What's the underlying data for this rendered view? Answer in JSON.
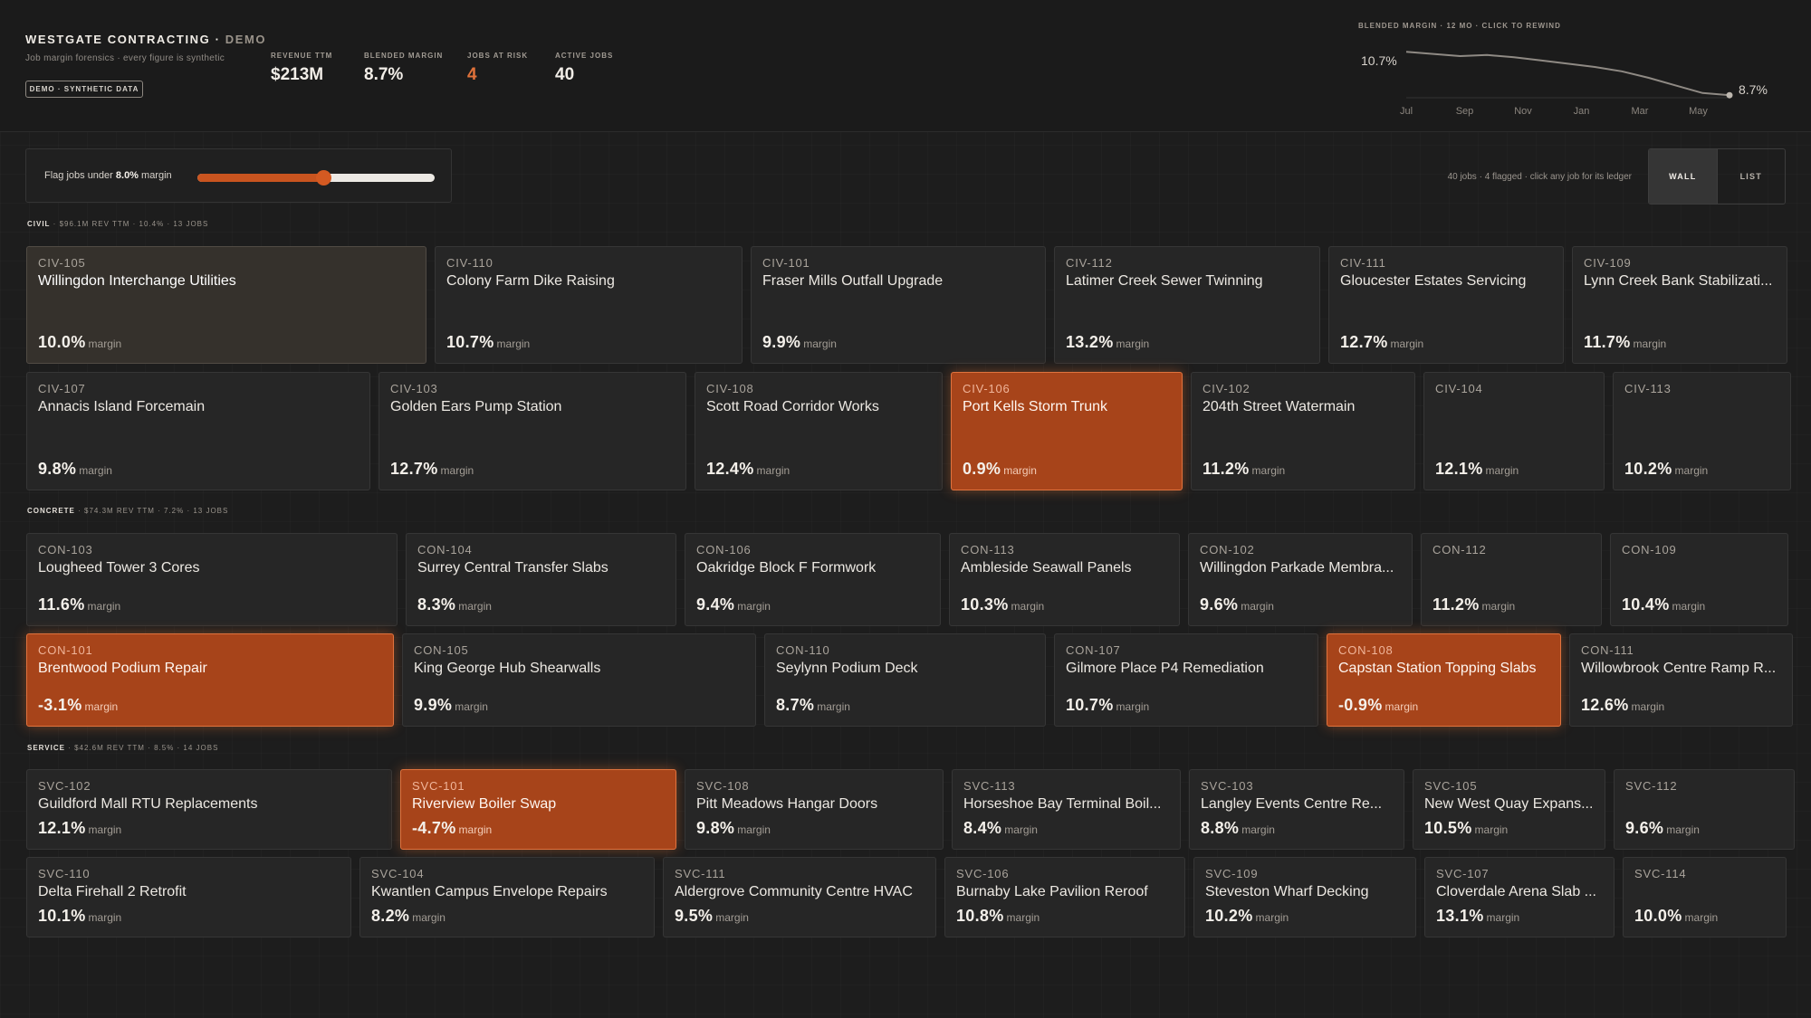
{
  "header": {
    "title": "WESTGATE CONTRACTING",
    "title_sep": " · ",
    "title_suffix": "DEMO",
    "subtitle": "Job margin forensics · every figure is synthetic",
    "badge": "DEMO · SYNTHETIC DATA",
    "kpis": [
      {
        "label": "REVENUE TTM",
        "value": "$213M",
        "alert": false
      },
      {
        "label": "BLENDED MARGIN",
        "value": "8.7%",
        "alert": false
      },
      {
        "label": "JOBS AT RISK",
        "value": "4",
        "alert": true
      },
      {
        "label": "ACTIVE JOBS",
        "value": "40",
        "alert": false
      }
    ]
  },
  "sparkline": {
    "title": "BLENDED MARGIN · 12 MO · CLICK TO REWIND",
    "start_label": "10.7%",
    "end_label": "8.7%",
    "accent": "#e0723a",
    "months": [
      "Jul",
      "Sep",
      "Nov",
      "Jan",
      "Mar",
      "May"
    ],
    "points": [
      10.7,
      10.6,
      10.5,
      10.55,
      10.45,
      10.3,
      10.15,
      10.0,
      9.8,
      9.5,
      9.15,
      8.8,
      8.7
    ]
  },
  "controls": {
    "flag_label_pre": "Flag jobs under ",
    "flag_threshold": "8.0%",
    "flag_label_post": " margin",
    "slider_fraction": 0.53,
    "summary": "40 jobs · 4 flagged · click any job for its ledger",
    "view_wall": "WALL",
    "view_list": "LIST"
  },
  "colors": {
    "background": "#1d1d1d",
    "flagged": "#a7441a",
    "accent": "#e0723a"
  },
  "margin_unit": "margin",
  "sections": [
    {
      "id": "civil",
      "name": "CIVIL",
      "meta": " · $96.1M REV TTM · 10.4% · 13 JOBS",
      "rows": [
        [
          {
            "code": "CIV-105",
            "name": "Willingdon Interchange Utilities",
            "margin": "10.0%",
            "state": "selected"
          },
          {
            "code": "CIV-110",
            "name": "Colony Farm Dike Raising",
            "margin": "10.7%",
            "state": ""
          },
          {
            "code": "CIV-101",
            "name": "Fraser Mills Outfall Upgrade",
            "margin": "9.9%",
            "state": ""
          },
          {
            "code": "CIV-112",
            "name": "Latimer Creek Sewer Twinning",
            "margin": "13.2%",
            "state": ""
          },
          {
            "code": "CIV-111",
            "name": "Gloucester Estates Servicing",
            "margin": "12.7%",
            "state": ""
          },
          {
            "code": "CIV-109",
            "name": "Lynn Creek Bank Stabilizati...",
            "margin": "11.7%",
            "state": ""
          }
        ],
        [
          {
            "code": "CIV-107",
            "name": "Annacis Island Forcemain",
            "margin": "9.8%",
            "state": ""
          },
          {
            "code": "CIV-103",
            "name": "Golden Ears Pump Station",
            "margin": "12.7%",
            "state": ""
          },
          {
            "code": "CIV-108",
            "name": "Scott Road Corridor Works",
            "margin": "12.4%",
            "state": ""
          },
          {
            "code": "CIV-106",
            "name": "Port Kells Storm Trunk",
            "margin": "0.9%",
            "state": "flagged"
          },
          {
            "code": "CIV-102",
            "name": "204th Street Watermain",
            "margin": "11.2%",
            "state": ""
          },
          {
            "code": "CIV-104",
            "name": "",
            "margin": "12.1%",
            "state": ""
          },
          {
            "code": "CIV-113",
            "name": "",
            "margin": "10.2%",
            "state": ""
          }
        ]
      ]
    },
    {
      "id": "concrete",
      "name": "CONCRETE",
      "meta": " · $74.3M REV TTM · 7.2% · 13 JOBS",
      "rows": [
        [
          {
            "code": "CON-103",
            "name": "Lougheed Tower 3 Cores",
            "margin": "11.6%",
            "state": ""
          },
          {
            "code": "CON-104",
            "name": "Surrey Central Transfer Slabs",
            "margin": "8.3%",
            "state": ""
          },
          {
            "code": "CON-106",
            "name": "Oakridge Block F Formwork",
            "margin": "9.4%",
            "state": ""
          },
          {
            "code": "CON-113",
            "name": "Ambleside Seawall Panels",
            "margin": "10.3%",
            "state": ""
          },
          {
            "code": "CON-102",
            "name": "Willingdon Parkade Membra...",
            "margin": "9.6%",
            "state": ""
          },
          {
            "code": "CON-112",
            "name": "",
            "margin": "11.2%",
            "state": ""
          },
          {
            "code": "CON-109",
            "name": "",
            "margin": "10.4%",
            "state": ""
          }
        ],
        [
          {
            "code": "CON-101",
            "name": "Brentwood Podium Repair",
            "margin": "-3.1%",
            "state": "flagged"
          },
          {
            "code": "CON-105",
            "name": "King George Hub Shearwalls",
            "margin": "9.9%",
            "state": ""
          },
          {
            "code": "CON-110",
            "name": "Seylynn Podium Deck",
            "margin": "8.7%",
            "state": ""
          },
          {
            "code": "CON-107",
            "name": "Gilmore Place P4 Remediation",
            "margin": "10.7%",
            "state": ""
          },
          {
            "code": "CON-108",
            "name": "Capstan Station Topping Slabs",
            "margin": "-0.9%",
            "state": "flagged"
          },
          {
            "code": "CON-111",
            "name": "Willowbrook Centre Ramp R...",
            "margin": "12.6%",
            "state": ""
          }
        ]
      ]
    },
    {
      "id": "service",
      "name": "SERVICE",
      "meta": " · $42.6M REV TTM · 8.5% · 14 JOBS",
      "rows": [
        [
          {
            "code": "SVC-102",
            "name": "Guildford Mall RTU Replacements",
            "margin": "12.1%",
            "state": ""
          },
          {
            "code": "SVC-101",
            "name": "Riverview Boiler Swap",
            "margin": "-4.7%",
            "state": "flagged"
          },
          {
            "code": "SVC-108",
            "name": "Pitt Meadows Hangar Doors",
            "margin": "9.8%",
            "state": ""
          },
          {
            "code": "SVC-113",
            "name": "Horseshoe Bay Terminal Boil...",
            "margin": "8.4%",
            "state": ""
          },
          {
            "code": "SVC-103",
            "name": "Langley Events Centre Re...",
            "margin": "8.8%",
            "state": ""
          },
          {
            "code": "SVC-105",
            "name": "New West Quay Expans...",
            "margin": "10.5%",
            "state": ""
          },
          {
            "code": "SVC-112",
            "name": "",
            "margin": "9.6%",
            "state": ""
          }
        ],
        [
          {
            "code": "SVC-110",
            "name": "Delta Firehall 2 Retrofit",
            "margin": "10.1%",
            "state": ""
          },
          {
            "code": "SVC-104",
            "name": "Kwantlen Campus Envelope Repairs",
            "margin": "8.2%",
            "state": ""
          },
          {
            "code": "SVC-111",
            "name": "Aldergrove Community Centre HVAC",
            "margin": "9.5%",
            "state": ""
          },
          {
            "code": "SVC-106",
            "name": "Burnaby Lake Pavilion Reroof",
            "margin": "10.8%",
            "state": ""
          },
          {
            "code": "SVC-109",
            "name": "Steveston Wharf Decking",
            "margin": "10.2%",
            "state": ""
          },
          {
            "code": "SVC-107",
            "name": "Cloverdale Arena Slab ...",
            "margin": "13.1%",
            "state": ""
          },
          {
            "code": "SVC-114",
            "name": "",
            "margin": "10.0%",
            "state": ""
          }
        ]
      ]
    }
  ]
}
